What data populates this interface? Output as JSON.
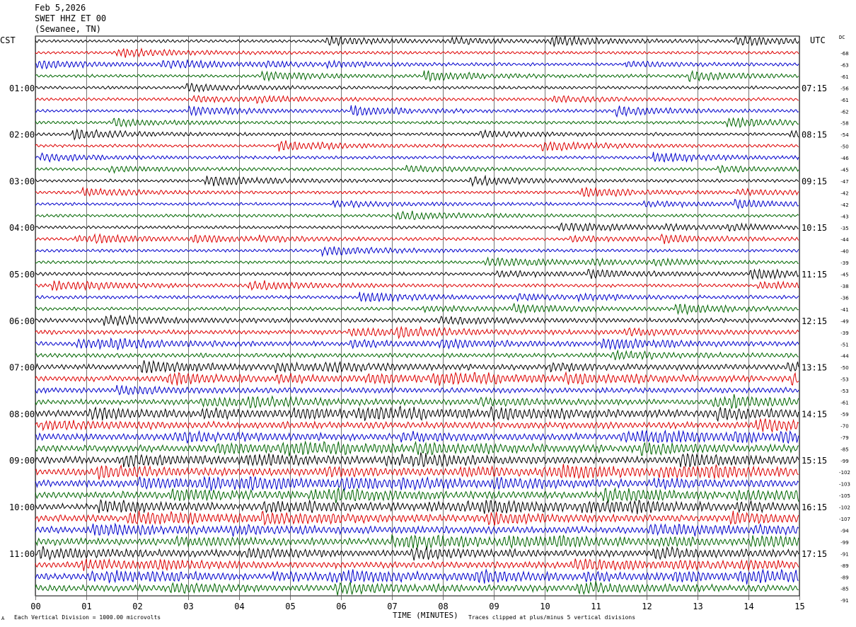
{
  "header": {
    "date": "Feb 5,2026",
    "station": "SWET HHZ ET 00",
    "location": "(Sewanee, TN)"
  },
  "left_timezone": "CST",
  "right_timezone": "UTC",
  "dc_label": "DC",
  "footer": {
    "scale_note": "Each Vertical Division = 1000.00 microvolts",
    "xlabel": "TIME (MINUTES)",
    "clip_note": "Traces clipped at plus/minus 5 vertical divisions",
    "corner_mark": "A"
  },
  "colors": {
    "traces": [
      "#000000",
      "#dd0000",
      "#0000cc",
      "#006600"
    ],
    "grid": "#000000",
    "background": "#ffffff"
  },
  "chart_data": {
    "type": "line",
    "title": "SWET HHZ ET 00",
    "xlabel": "TIME (MINUTES)",
    "xlim": [
      0,
      15
    ],
    "x_ticks": [
      "00",
      "01",
      "02",
      "03",
      "04",
      "05",
      "06",
      "07",
      "08",
      "09",
      "10",
      "11",
      "12",
      "13",
      "14",
      "15"
    ],
    "trace_count": 48,
    "trace_colors_cycle": [
      "black",
      "red",
      "blue",
      "green"
    ],
    "left_hour_labels": [
      "01:00",
      "02:00",
      "03:00",
      "04:00",
      "05:00",
      "06:00",
      "07:00",
      "08:00",
      "09:00",
      "10:00",
      "11:00"
    ],
    "right_hour_labels": [
      "07:15",
      "08:15",
      "09:15",
      "10:15",
      "11:15",
      "12:15",
      "13:15",
      "14:15",
      "15:15",
      "16:15",
      "17:15"
    ],
    "dc_offsets": [
      -68,
      -63,
      -61,
      -56,
      -61,
      -62,
      -58,
      -54,
      -50,
      -46,
      -45,
      -47,
      -42,
      -42,
      -43,
      -35,
      -44,
      -40,
      -39,
      -45,
      -38,
      -36,
      -41,
      -49,
      -39,
      -51,
      -44,
      -50,
      -53,
      -53,
      -61,
      -59,
      -70,
      -79,
      -85,
      -99,
      -102,
      -103,
      -105,
      -102,
      -107,
      -94,
      -99,
      -91,
      -89,
      -89,
      -85,
      -91
    ],
    "trace_activity": [
      0.9,
      0.9,
      0.9,
      0.9,
      0.9,
      0.9,
      0.9,
      0.9,
      0.9,
      0.9,
      0.9,
      0.9,
      0.9,
      0.9,
      0.9,
      0.9,
      0.9,
      0.9,
      0.9,
      0.9,
      1,
      1,
      1,
      1,
      1.3,
      1.3,
      1.3,
      1.3,
      1.6,
      1.6,
      1.6,
      1.6,
      2,
      2,
      2,
      2,
      2.1,
      2.1,
      2.1,
      2.1,
      2,
      2,
      2,
      2,
      1.9,
      1.9,
      1.9,
      1.9
    ],
    "grid": true
  }
}
